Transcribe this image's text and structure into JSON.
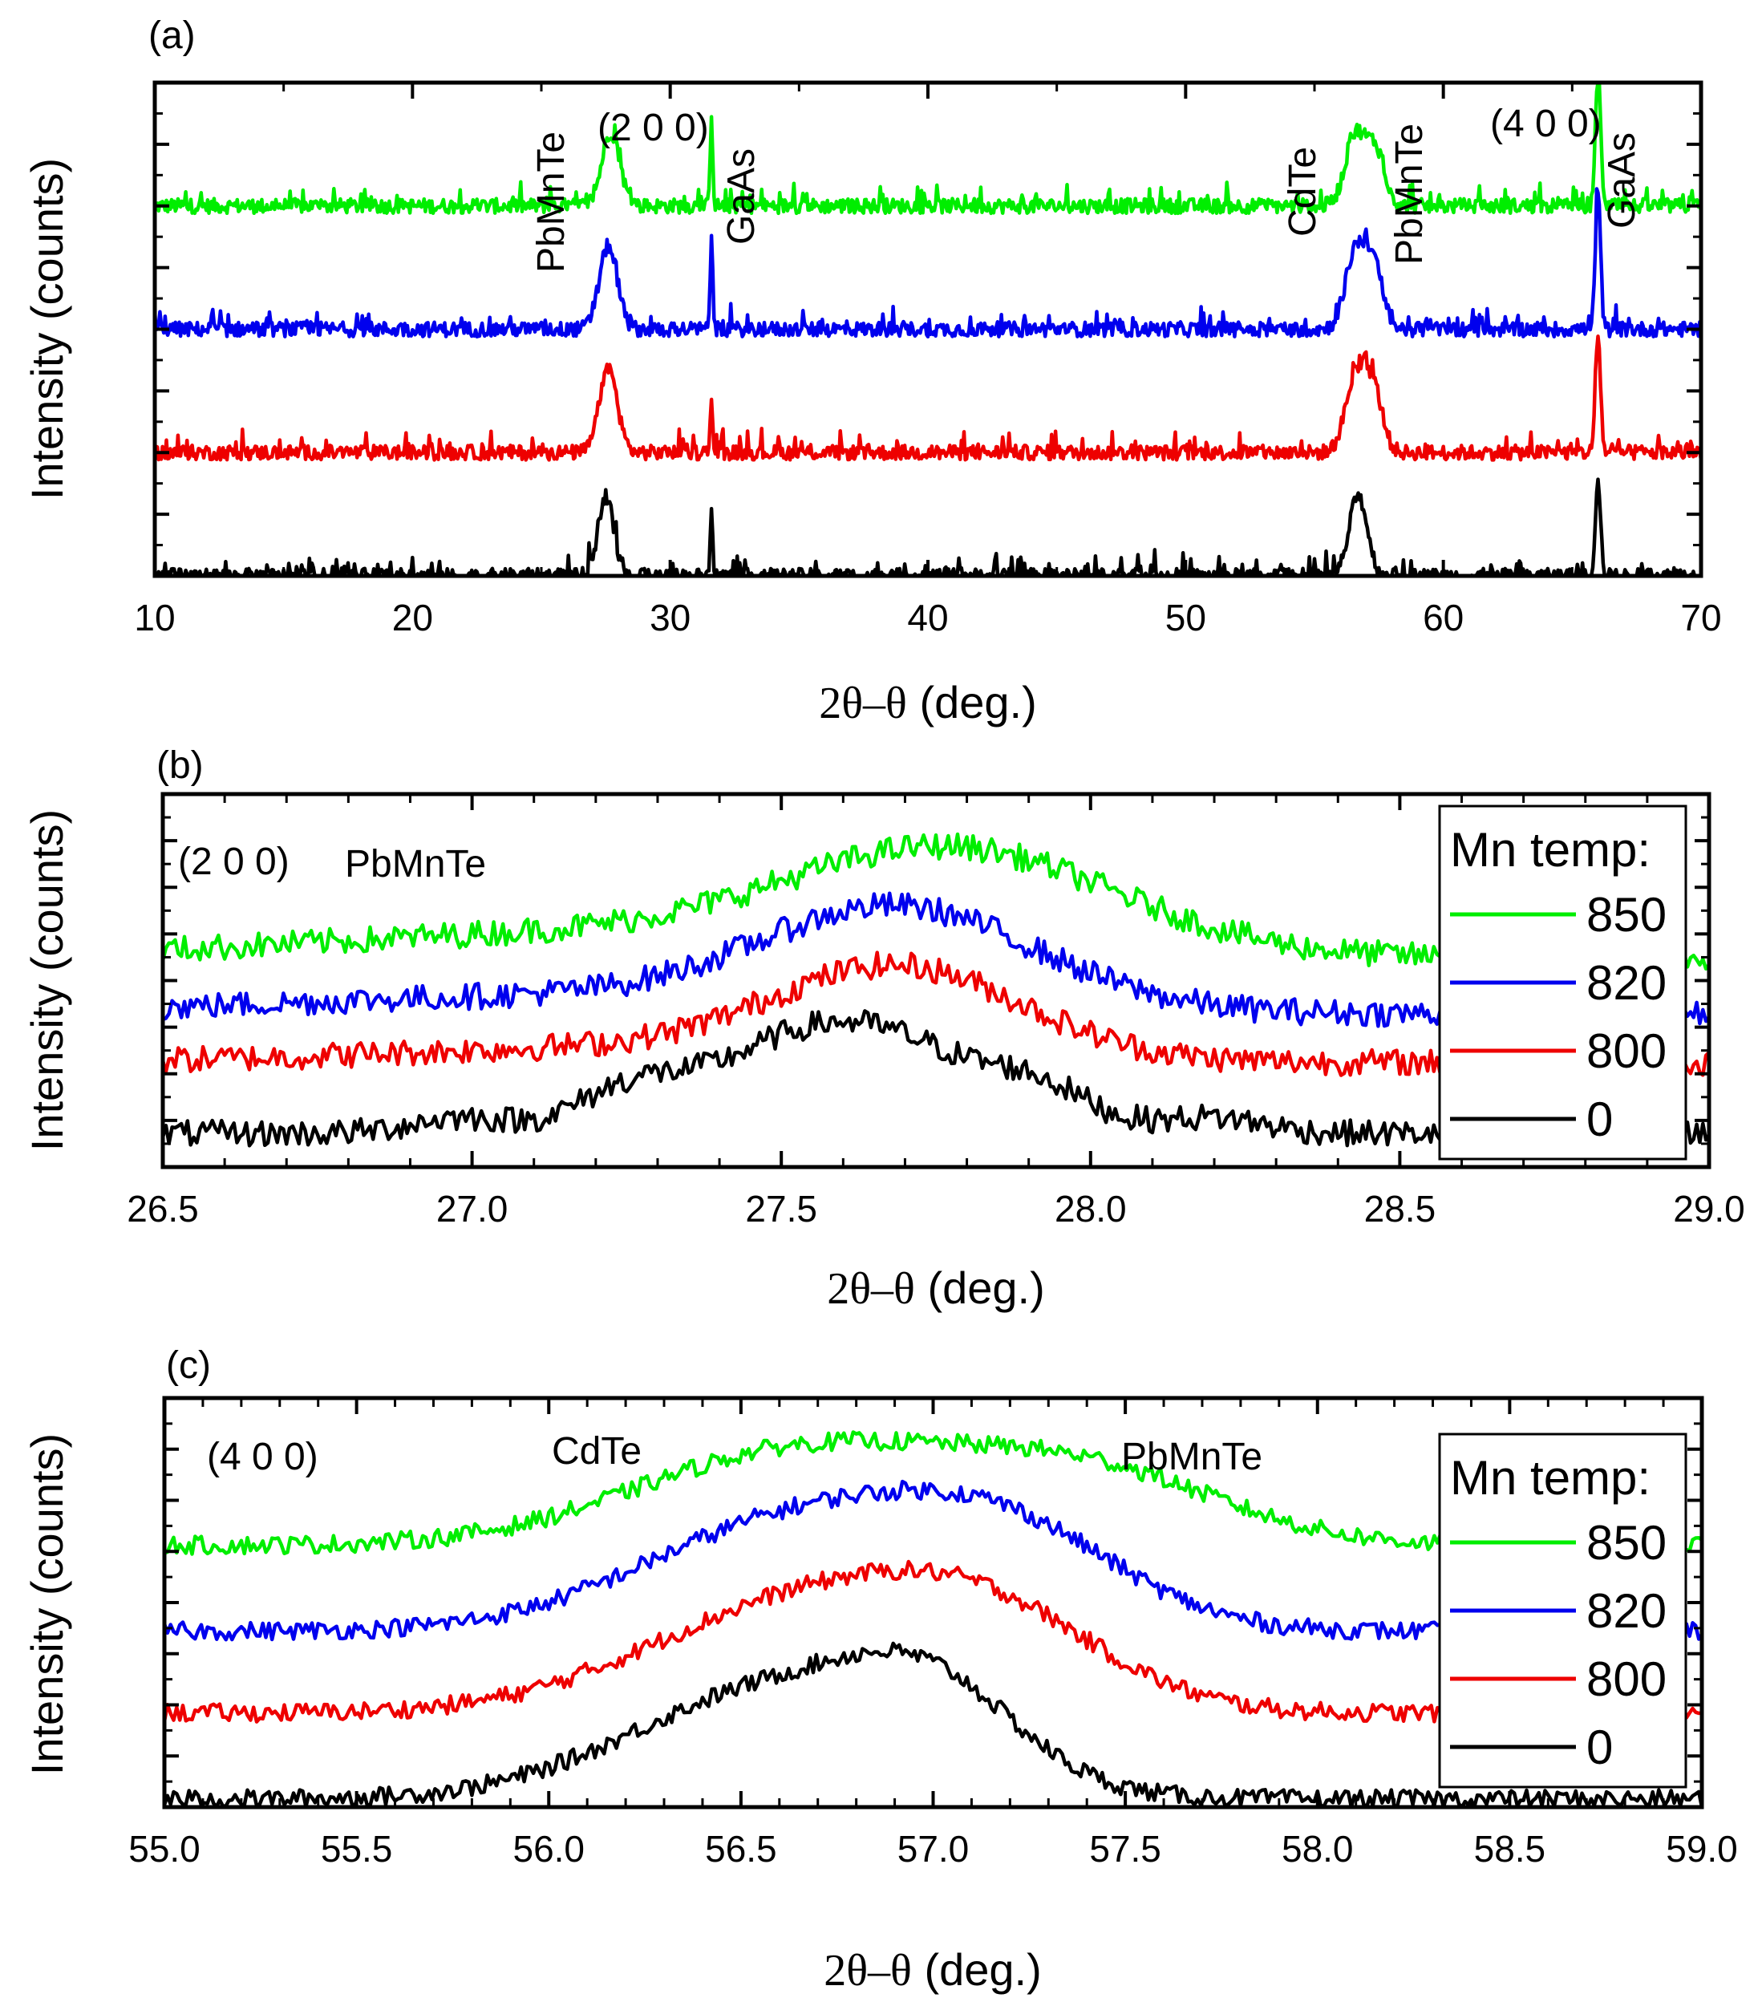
{
  "colors": {
    "850": "#00ee00",
    "820": "#0000ee",
    "800": "#ee0000",
    "0": "#000000"
  },
  "panels": [
    {
      "id": "a",
      "label": "(a)",
      "ylabel": "Intensity (counts)",
      "xlabel_pre": "2θ–θ",
      "xlabel_post": " (deg.)",
      "annotations": [
        {
          "text": "PbMnTe",
          "x": 25.6
        },
        {
          "text": "(2 0 0)",
          "x": 30.0
        },
        {
          "text": "GaAs",
          "x": 32.5
        },
        {
          "text": "CdTe",
          "x": 54.8
        },
        {
          "text": "PbMnTe",
          "x": 58.7
        },
        {
          "text": "(4 0 0)",
          "x": 63.6
        },
        {
          "text": "GaAs",
          "x": 67.1
        }
      ]
    },
    {
      "id": "b",
      "label": "(b)",
      "ylabel": "Intensity (counts)",
      "xlabel_pre": "2θ–θ",
      "xlabel_post": " (deg.)",
      "annotations": [
        {
          "text": "(2 0 0)",
          "x": 26.53
        },
        {
          "text": "PbMnTe",
          "x": 26.79
        }
      ],
      "legend": {
        "title": "Mn temp:",
        "entries": [
          "850",
          "820",
          "800",
          "0"
        ]
      }
    },
    {
      "id": "c",
      "label": "(c)",
      "ylabel": "Intensity (counts)",
      "xlabel_pre": "2θ–θ",
      "xlabel_post": " (deg.)",
      "annotations": [
        {
          "text": "(4 0 0)",
          "x": 55.12
        },
        {
          "text": "CdTe",
          "x": 56.02
        },
        {
          "text": "PbMnTe",
          "x": 57.5
        }
      ],
      "legend": {
        "title": "Mn temp:",
        "entries": [
          "850",
          "820",
          "800",
          "0"
        ]
      }
    }
  ],
  "chart_data": [
    {
      "type": "line",
      "title": "(a)",
      "xlabel": "2θ–θ (deg.)",
      "ylabel": "Intensity (counts)",
      "xlim": [
        10,
        70
      ],
      "xticks": [
        10,
        20,
        30,
        40,
        50,
        60,
        70
      ],
      "ylim": [
        0,
        8
      ],
      "series": [
        {
          "name": "850",
          "offset": 6,
          "peaks": [
            [
              27.7,
              1.2,
              0.35
            ],
            [
              31.6,
              1.5,
              0.05
            ],
            [
              56.6,
              1.15,
              0.4
            ],
            [
              57.4,
              0.85,
              0.35
            ],
            [
              66.0,
              2.2,
              0.1
            ]
          ],
          "spikes": [
            [
              35.3,
              0.3
            ]
          ]
        },
        {
          "name": "820",
          "offset": 4,
          "peaks": [
            [
              27.6,
              1.35,
              0.35
            ],
            [
              31.6,
              1.5,
              0.05
            ],
            [
              56.6,
              1.25,
              0.4
            ],
            [
              57.3,
              0.95,
              0.35
            ],
            [
              66.0,
              2.2,
              0.1
            ]
          ],
          "spikes": [
            [
              12.2,
              0.25
            ],
            [
              23.8,
              0.2
            ]
          ]
        },
        {
          "name": "800",
          "offset": 2,
          "peaks": [
            [
              27.6,
              1.35,
              0.35
            ],
            [
              31.6,
              0.8,
              0.05
            ],
            [
              56.6,
              1.2,
              0.4
            ],
            [
              57.3,
              0.95,
              0.35
            ],
            [
              66.0,
              1.9,
              0.1
            ]
          ],
          "spikes": [
            [
              36.6,
              0.3
            ]
          ]
        },
        {
          "name": "0",
          "offset": 0,
          "peaks": [
            [
              27.5,
              1.3,
              0.3
            ],
            [
              31.6,
              1.2,
              0.05
            ],
            [
              56.7,
              1.3,
              0.35
            ],
            [
              66.0,
              1.6,
              0.1
            ]
          ],
          "spikes": [
            [
              48.8,
              0.4
            ],
            [
              46.5,
              0.25
            ]
          ]
        }
      ]
    },
    {
      "type": "line",
      "title": "(b) (2 0 0) PbMnTe",
      "xlabel": "2θ–θ (deg.)",
      "ylabel": "Intensity (counts)",
      "xlim": [
        26.5,
        29.0
      ],
      "xticks": [
        26.5,
        27.0,
        27.5,
        28.0,
        28.5,
        29.0
      ],
      "ylim": [
        0,
        10
      ],
      "series": [
        {
          "name": "850",
          "offset": 5.6,
          "peaks": [
            [
              27.78,
              2.6,
              0.26
            ],
            [
              27.25,
              0.7,
              0.5
            ]
          ],
          "spikes": []
        },
        {
          "name": "820",
          "offset": 4.1,
          "peaks": [
            [
              27.69,
              2.6,
              0.22
            ],
            [
              27.2,
              0.5,
              0.5
            ]
          ],
          "spikes": []
        },
        {
          "name": "800",
          "offset": 2.8,
          "peaks": [
            [
              27.69,
              2.4,
              0.2
            ],
            [
              27.25,
              0.4,
              0.4
            ]
          ],
          "spikes": []
        },
        {
          "name": "0",
          "offset": 0.9,
          "peaks": [
            [
              27.6,
              3.0,
              0.2
            ],
            [
              27.25,
              0.8,
              0.08
            ],
            [
              27.92,
              0.7,
              0.08
            ],
            [
              26.98,
              0.4,
              0.08
            ],
            [
              28.2,
              0.4,
              0.08
            ]
          ],
          "spikes": []
        }
      ]
    },
    {
      "type": "line",
      "title": "(c) (4 0 0) CdTe PbMnTe",
      "xlabel": "2θ–θ (deg.)",
      "ylabel": "Intensity (counts)",
      "xlim": [
        55.0,
        59.0
      ],
      "xticks": [
        55.0,
        55.5,
        56.0,
        56.5,
        57.0,
        57.5,
        58.0,
        58.5,
        59.0
      ],
      "ylim": [
        0,
        10
      ],
      "series": [
        {
          "name": "850",
          "offset": 6.4,
          "peaks": [
            [
              56.65,
              2.3,
              0.42
            ],
            [
              57.4,
              1.7,
              0.35
            ]
          ],
          "spikes": []
        },
        {
          "name": "820",
          "offset": 4.3,
          "peaks": [
            [
              56.65,
              2.7,
              0.4
            ],
            [
              57.2,
              2.0,
              0.3
            ]
          ],
          "spikes": []
        },
        {
          "name": "800",
          "offset": 2.3,
          "peaks": [
            [
              56.65,
              2.6,
              0.4
            ],
            [
              57.15,
              1.9,
              0.3
            ]
          ],
          "spikes": []
        },
        {
          "name": "0",
          "offset": 0.2,
          "peaks": [
            [
              56.6,
              2.7,
              0.38
            ],
            [
              57.0,
              1.8,
              0.22
            ]
          ],
          "spikes": []
        }
      ]
    }
  ]
}
